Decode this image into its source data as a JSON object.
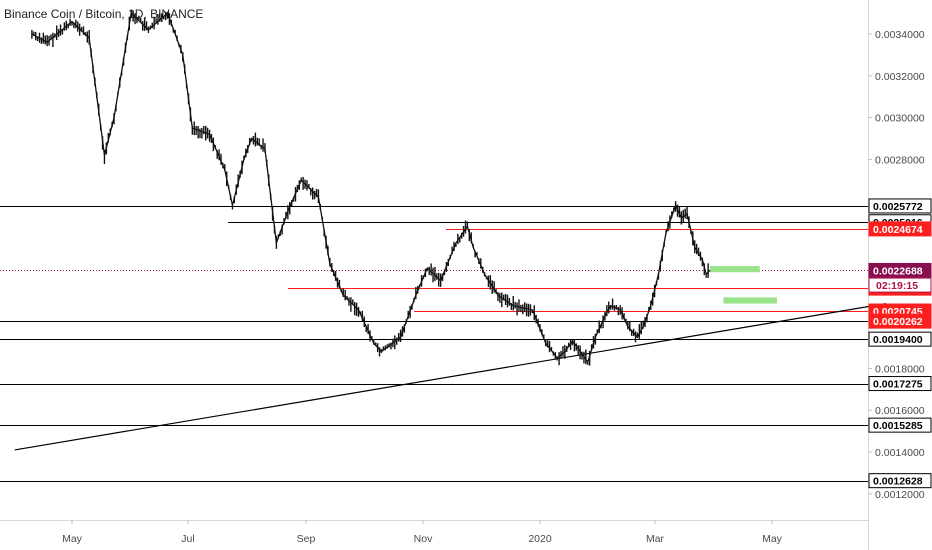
{
  "header": {
    "title": "Binance Coin / Bitcoin, 1D, BINANCE"
  },
  "colors": {
    "candle": "#111111",
    "support_line": "#000000",
    "resistance_line": "#ff1e1e",
    "current_line": "#b0104a",
    "current_badge": "#880e4f",
    "timer_badge": "#ffffff",
    "target_box": "#9be38a",
    "axis_text": "#4a4a4a"
  },
  "chart_data": {
    "type": "line",
    "title": "Binance Coin / Bitcoin, 1D, BINANCE",
    "xlabel": "",
    "ylabel": "",
    "ylim": [
      0.00108,
      0.00352
    ],
    "x_ticks": [
      "May",
      "Jul",
      "Sep",
      "Nov",
      "2020",
      "Mar",
      "May"
    ],
    "y_ticks": [
      "0.0034000",
      "0.0032000",
      "0.0030000",
      "0.0028000",
      "0.0018000",
      "0.0016000",
      "0.0014000",
      "0.0012000"
    ],
    "price_path": [
      {
        "x": "2019-04-10",
        "y": 0.0034
      },
      {
        "x": "2019-04-18",
        "y": 0.00336
      },
      {
        "x": "2019-05-01",
        "y": 0.00346
      },
      {
        "x": "2019-05-10",
        "y": 0.00338
      },
      {
        "x": "2019-05-18",
        "y": 0.00282
      },
      {
        "x": "2019-05-23",
        "y": 0.003
      },
      {
        "x": "2019-06-01",
        "y": 0.0035
      },
      {
        "x": "2019-06-10",
        "y": 0.00342
      },
      {
        "x": "2019-06-20",
        "y": 0.0035
      },
      {
        "x": "2019-06-28",
        "y": 0.0033
      },
      {
        "x": "2019-07-03",
        "y": 0.00295
      },
      {
        "x": "2019-07-12",
        "y": 0.00292
      },
      {
        "x": "2019-07-20",
        "y": 0.00275
      },
      {
        "x": "2019-07-24",
        "y": 0.00258
      },
      {
        "x": "2019-07-30",
        "y": 0.0028
      },
      {
        "x": "2019-08-03",
        "y": 0.0029
      },
      {
        "x": "2019-08-10",
        "y": 0.00285
      },
      {
        "x": "2019-08-16",
        "y": 0.0024
      },
      {
        "x": "2019-08-22",
        "y": 0.00255
      },
      {
        "x": "2019-08-29",
        "y": 0.0027
      },
      {
        "x": "2019-09-07",
        "y": 0.00262
      },
      {
        "x": "2019-09-13",
        "y": 0.0023
      },
      {
        "x": "2019-09-20",
        "y": 0.00215
      },
      {
        "x": "2019-09-28",
        "y": 0.00208
      },
      {
        "x": "2019-10-06",
        "y": 0.00192
      },
      {
        "x": "2019-10-10",
        "y": 0.00188
      },
      {
        "x": "2019-10-20",
        "y": 0.00195
      },
      {
        "x": "2019-10-28",
        "y": 0.00215
      },
      {
        "x": "2019-11-03",
        "y": 0.00228
      },
      {
        "x": "2019-11-10",
        "y": 0.00222
      },
      {
        "x": "2019-11-18",
        "y": 0.0024
      },
      {
        "x": "2019-11-24",
        "y": 0.00248
      },
      {
        "x": "2019-11-27",
        "y": 0.00238
      },
      {
        "x": "2019-12-03",
        "y": 0.00225
      },
      {
        "x": "2019-12-10",
        "y": 0.00215
      },
      {
        "x": "2019-12-18",
        "y": 0.0021
      },
      {
        "x": "2019-12-28",
        "y": 0.00208
      },
      {
        "x": "2020-01-04",
        "y": 0.00192
      },
      {
        "x": "2020-01-10",
        "y": 0.00185
      },
      {
        "x": "2020-01-14",
        "y": 0.00188
      },
      {
        "x": "2020-01-18",
        "y": 0.00193
      },
      {
        "x": "2020-01-23",
        "y": 0.00187
      },
      {
        "x": "2020-01-26",
        "y": 0.00183
      },
      {
        "x": "2020-01-30",
        "y": 0.00195
      },
      {
        "x": "2020-02-04",
        "y": 0.00205
      },
      {
        "x": "2020-02-07",
        "y": 0.0021
      },
      {
        "x": "2020-02-12",
        "y": 0.00208
      },
      {
        "x": "2020-02-16",
        "y": 0.002
      },
      {
        "x": "2020-02-21",
        "y": 0.00195
      },
      {
        "x": "2020-02-24",
        "y": 0.002
      },
      {
        "x": "2020-02-28",
        "y": 0.0021
      },
      {
        "x": "2020-03-03",
        "y": 0.00225
      },
      {
        "x": "2020-03-07",
        "y": 0.00245
      },
      {
        "x": "2020-03-12",
        "y": 0.00258
      },
      {
        "x": "2020-03-15",
        "y": 0.00252
      },
      {
        "x": "2020-03-18",
        "y": 0.00254
      },
      {
        "x": "2020-03-22",
        "y": 0.00238
      },
      {
        "x": "2020-03-26",
        "y": 0.00232
      },
      {
        "x": "2020-03-28",
        "y": 0.00225
      },
      {
        "x": "2020-03-30",
        "y": 0.00227
      }
    ],
    "horizontal_levels": [
      {
        "label": "0.0025772",
        "y": 0.0025772,
        "color": "#000000",
        "badge": "white"
      },
      {
        "label": "0.0025016",
        "y": 0.0025016,
        "color": "#000000",
        "badge": "white"
      },
      {
        "label": "0.0024674",
        "y": 0.0024674,
        "color": "#ff1e1e",
        "badge": "red"
      },
      {
        "label": "0.0022688",
        "y": 0.0022688,
        "color": "#b0104a",
        "badge": "current"
      },
      {
        "label": "0.0021841",
        "y": 0.0021841,
        "color": "#ff1e1e",
        "badge": "red"
      },
      {
        "label": "0.0020745",
        "y": 0.0020745,
        "color": "#ff1e1e",
        "badge": "red"
      },
      {
        "label": "0.0020262",
        "y": 0.0020262,
        "color": "#000000",
        "badge": "red"
      },
      {
        "label": "0.0019400",
        "y": 0.00194,
        "color": "#000000",
        "badge": "white"
      },
      {
        "label": "0.0017275",
        "y": 0.0017275,
        "color": "#000000",
        "badge": "white"
      },
      {
        "label": "0.0015285",
        "y": 0.0015285,
        "color": "#000000",
        "badge": "white"
      },
      {
        "label": "0.0012628",
        "y": 0.0012628,
        "color": "#000000",
        "badge": "white"
      }
    ],
    "timer_badge": {
      "label": "02:19:15",
      "y": 0.00228
    },
    "trendline": [
      {
        "x": "2019-04-01",
        "y": 0.00141
      },
      {
        "x": "2020-06-30",
        "y": 0.00211
      }
    ],
    "target_boxes": [
      {
        "x": [
          "2020-03-30",
          "2020-04-25"
        ],
        "y": [
          0.00226,
          0.00229
        ]
      },
      {
        "x": [
          "2020-04-06",
          "2020-05-04"
        ],
        "y": [
          0.00211,
          0.00214
        ]
      }
    ],
    "grid": false,
    "legend": "none"
  }
}
